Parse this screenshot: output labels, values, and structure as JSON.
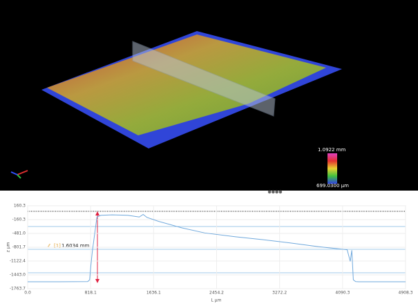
{
  "viewer": {
    "scale_max": "1.0922 mm",
    "scale_min": "699.0300 μm"
  },
  "chart_data": {
    "type": "line",
    "x_label": "L μm",
    "y_label": "z μm",
    "annotation": {
      "id": "[1]",
      "text": "1.6034 mm"
    },
    "xlim": [
      0,
      4908.3
    ],
    "xticks": [
      {
        "value": 0,
        "label": "0.0"
      },
      818.1,
      1636.1,
      2454.2,
      3272.2,
      4090.3,
      4908.3
    ],
    "ylim": [
      -1763.7,
      160.3
    ],
    "yticks": [
      160.3,
      -160.3,
      {
        "value": -481,
        "label": "-481.0"
      },
      -801.7,
      -1122.4,
      {
        "value": -1443,
        "label": "-1443.0"
      },
      -1763.7
    ],
    "grid": true,
    "series": [
      {
        "color": "#6fa8dc",
        "x": [
          0,
          400,
          780,
          805,
          820,
          840,
          870,
          900,
          950,
          1100,
          1300,
          1450,
          1500,
          1550,
          1700,
          2000,
          2300,
          2700,
          3050,
          3400,
          3780,
          4150,
          4190,
          4210,
          4230,
          4260,
          4300,
          4908.3
        ],
        "values": [
          -1603,
          -1603,
          -1600,
          -1560,
          -1250,
          -900,
          -500,
          -100,
          -60,
          -50,
          -60,
          -100,
          -40,
          -110,
          -200,
          -350,
          -470,
          -560,
          -625,
          -700,
          -790,
          -860,
          -1130,
          -870,
          -1560,
          -1600,
          -1603,
          -1603
        ]
      }
    ]
  }
}
